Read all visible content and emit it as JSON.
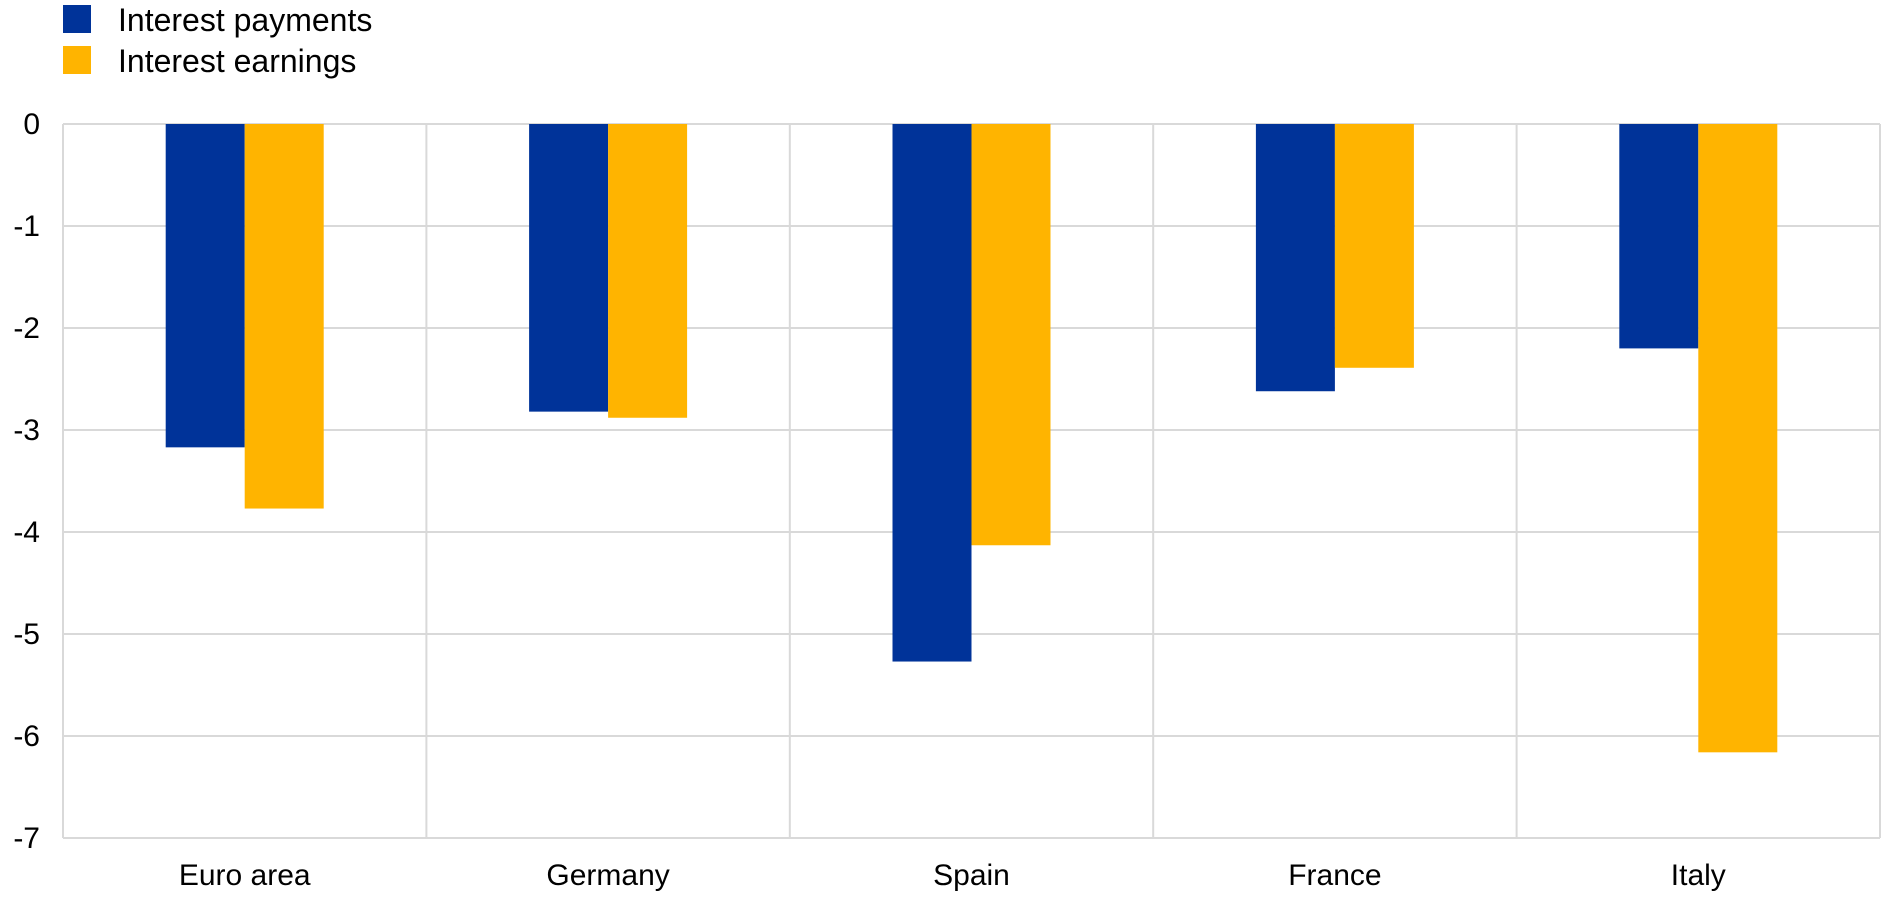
{
  "chart_data": {
    "type": "bar",
    "categories": [
      "Euro area",
      "Germany",
      "Spain",
      "France",
      "Italy"
    ],
    "series": [
      {
        "name": "Interest payments",
        "color": "#003399",
        "values": [
          -3.17,
          -2.82,
          -5.27,
          -2.62,
          -2.2
        ]
      },
      {
        "name": "Interest earnings",
        "color": "#FFB400",
        "values": [
          -3.77,
          -2.88,
          -4.13,
          -2.39,
          -6.16
        ]
      }
    ],
    "ylim": [
      -7,
      0
    ],
    "yticks": [
      "0",
      "-1",
      "-2",
      "-3",
      "-4",
      "-5",
      "-6",
      "-7"
    ],
    "grid": true,
    "legend_position": "top-left",
    "title": "",
    "xlabel": "",
    "ylabel": ""
  }
}
